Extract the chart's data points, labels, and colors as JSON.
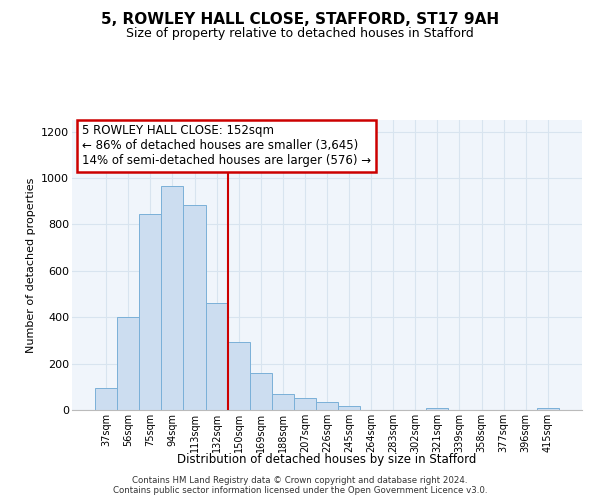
{
  "title": "5, ROWLEY HALL CLOSE, STAFFORD, ST17 9AH",
  "subtitle": "Size of property relative to detached houses in Stafford",
  "xlabel": "Distribution of detached houses by size in Stafford",
  "ylabel": "Number of detached properties",
  "bar_labels": [
    "37sqm",
    "56sqm",
    "75sqm",
    "94sqm",
    "113sqm",
    "132sqm",
    "150sqm",
    "169sqm",
    "188sqm",
    "207sqm",
    "226sqm",
    "245sqm",
    "264sqm",
    "283sqm",
    "302sqm",
    "321sqm",
    "339sqm",
    "358sqm",
    "377sqm",
    "396sqm",
    "415sqm"
  ],
  "bar_values": [
    95,
    400,
    845,
    965,
    885,
    460,
    295,
    160,
    70,
    52,
    35,
    18,
    0,
    0,
    0,
    10,
    0,
    0,
    0,
    0,
    10
  ],
  "bar_color": "#ccddf0",
  "bar_edge_color": "#7ab0d8",
  "vline_index": 6,
  "vline_color": "#cc0000",
  "annotation_title": "5 ROWLEY HALL CLOSE: 152sqm",
  "annotation_line1": "← 86% of detached houses are smaller (3,645)",
  "annotation_line2": "14% of semi-detached houses are larger (576) →",
  "annotation_box_color": "#ffffff",
  "annotation_box_edge_color": "#cc0000",
  "ylim": [
    0,
    1250
  ],
  "yticks": [
    0,
    200,
    400,
    600,
    800,
    1000,
    1200
  ],
  "footer1": "Contains HM Land Registry data © Crown copyright and database right 2024.",
  "footer2": "Contains public sector information licensed under the Open Government Licence v3.0.",
  "grid_color": "#d8e4ef",
  "background_color": "#ffffff",
  "plot_bg_color": "#f0f5fb"
}
